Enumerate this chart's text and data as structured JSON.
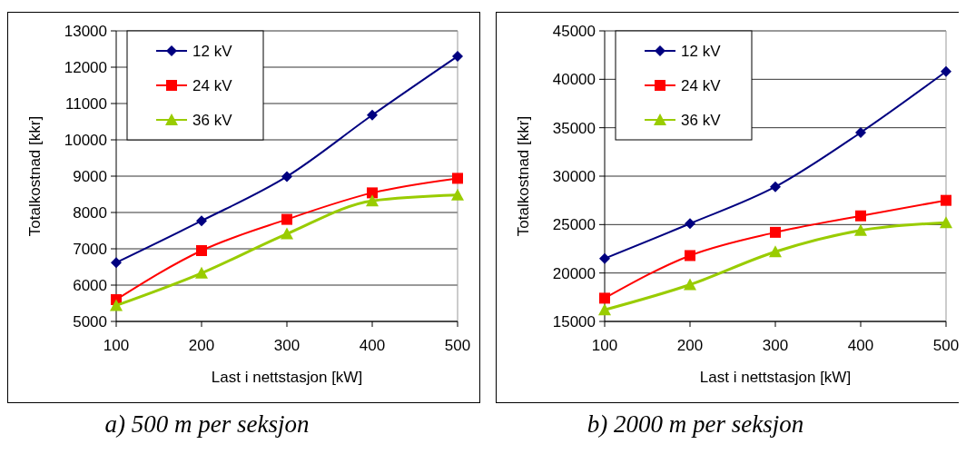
{
  "chart_data": [
    {
      "type": "line",
      "xlabel": "Last i nettstasjon [kW]",
      "ylabel": "Totalkostnad [kkr]",
      "annotations": [
        "a) 500 m per seksjon"
      ],
      "x": [
        100,
        200,
        300,
        400,
        500
      ],
      "xlim": [
        100,
        500
      ],
      "xticks": [
        100,
        200,
        300,
        400,
        500
      ],
      "ylim": [
        5000,
        13000
      ],
      "yticks": [
        5000,
        6000,
        7000,
        8000,
        9000,
        10000,
        11000,
        12000,
        13000
      ],
      "grid": "y",
      "legend": "top left",
      "series": [
        {
          "name": "12 kV",
          "color": "#000080",
          "marker": "diamond",
          "values": [
            6620,
            7770,
            8990,
            10680,
            12300
          ]
        },
        {
          "name": "24 kV",
          "color": "#ff0000",
          "marker": "square",
          "values": [
            5600,
            6950,
            7810,
            8540,
            8940
          ]
        },
        {
          "name": "36 kV",
          "color": "#99cc00",
          "marker": "triangle",
          "values": [
            5440,
            6330,
            7410,
            8320,
            8480
          ]
        }
      ]
    },
    {
      "type": "line",
      "xlabel": "Last i nettstasjon [kW]",
      "ylabel": "Totalkostnad [kkr]",
      "annotations": [
        "b) 2000 m per seksjon"
      ],
      "x": [
        100,
        200,
        300,
        400,
        500
      ],
      "xlim": [
        100,
        500
      ],
      "xticks": [
        100,
        200,
        300,
        400,
        500
      ],
      "ylim": [
        15000,
        45000
      ],
      "yticks": [
        15000,
        20000,
        25000,
        30000,
        35000,
        40000,
        45000
      ],
      "grid": "y",
      "legend": "top left",
      "series": [
        {
          "name": "12 kV",
          "color": "#000080",
          "marker": "diamond",
          "values": [
            21500,
            25100,
            28900,
            34500,
            40800
          ]
        },
        {
          "name": "24 kV",
          "color": "#ff0000",
          "marker": "square",
          "values": [
            17400,
            21800,
            24200,
            25900,
            27500
          ]
        },
        {
          "name": "36 kV",
          "color": "#99cc00",
          "marker": "triangle",
          "values": [
            16200,
            18800,
            22200,
            24400,
            25200
          ]
        }
      ]
    }
  ]
}
